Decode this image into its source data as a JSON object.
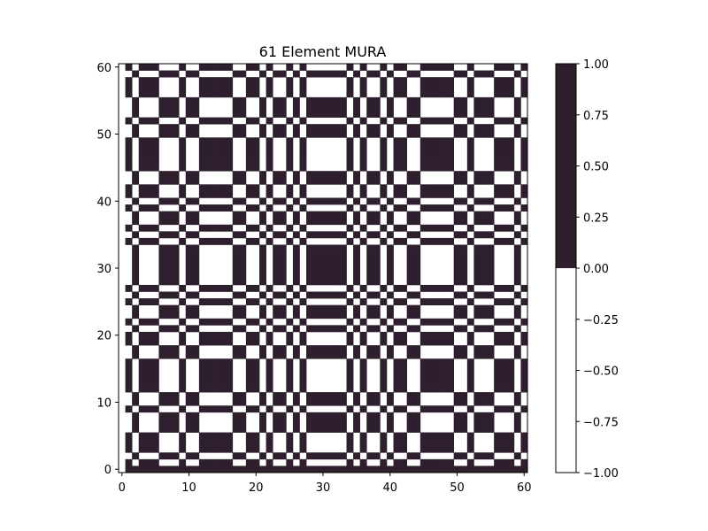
{
  "chart_data": {
    "type": "heatmap",
    "title": "61 Element MURA",
    "xlabel": "",
    "ylabel": "",
    "order": 61,
    "quadratic_residues_mod_61": [
      1,
      3,
      4,
      5,
      9,
      12,
      13,
      14,
      15,
      16,
      19,
      20,
      22,
      25,
      27,
      34,
      36,
      39,
      41,
      42,
      45,
      46,
      47,
      48,
      49,
      52,
      56,
      57,
      58,
      60
    ],
    "value_rule": "A[i][j] = 0 for i = 0; 1 for j = 0, i > 0; 1 if c_i * c_j = 1; otherwise 0, where c_k = 1 if k is a quadratic residue mod 61, else -1",
    "xlim": [
      -0.5,
      60.5
    ],
    "ylim": [
      -0.5,
      60.5
    ],
    "xticks": [
      0,
      10,
      20,
      30,
      40,
      50,
      60
    ],
    "yticks": [
      0,
      10,
      20,
      30,
      40,
      50,
      60
    ],
    "origin": "lower",
    "colormap": "two-level",
    "colors": {
      "low": "#ffffff",
      "high": "#2e1f2e"
    },
    "colorbar": {
      "range": [
        -1.0,
        1.0
      ],
      "ticks": [
        "1.00",
        "0.75",
        "0.50",
        "0.25",
        "0.00",
        "−0.25",
        "−0.50",
        "−0.75",
        "−1.00"
      ],
      "tick_values": [
        1.0,
        0.75,
        0.5,
        0.25,
        0.0,
        -0.25,
        -0.5,
        -0.75,
        -1.0
      ],
      "split_value": 0.0
    },
    "grid": false
  }
}
